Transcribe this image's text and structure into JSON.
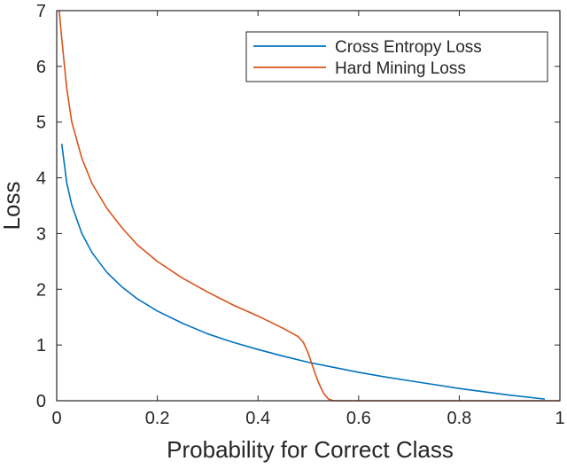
{
  "chart_data": {
    "type": "line",
    "title": "",
    "xlabel": "Probability for Correct Class",
    "ylabel": "Loss",
    "xlim": [
      0,
      1
    ],
    "ylim": [
      0,
      7
    ],
    "grid": false,
    "legend_position": "top-right",
    "x_ticks": [
      "0",
      "0.2",
      "0.4",
      "0.6",
      "0.8",
      "1"
    ],
    "y_ticks": [
      "0",
      "1",
      "2",
      "3",
      "4",
      "5",
      "6",
      "7"
    ],
    "series": [
      {
        "name": "Cross Entropy Loss",
        "color": "#0072bd",
        "x": [
          0.01,
          0.02,
          0.03,
          0.05,
          0.07,
          0.1,
          0.13,
          0.16,
          0.2,
          0.25,
          0.3,
          0.35,
          0.4,
          0.45,
          0.5,
          0.55,
          0.6,
          0.65,
          0.7,
          0.75,
          0.8,
          0.85,
          0.9,
          0.95,
          0.97
        ],
        "y": [
          4.61,
          3.91,
          3.51,
          3.0,
          2.66,
          2.3,
          2.04,
          1.83,
          1.61,
          1.39,
          1.2,
          1.05,
          0.92,
          0.8,
          0.69,
          0.6,
          0.51,
          0.43,
          0.36,
          0.29,
          0.22,
          0.16,
          0.1,
          0.05,
          0.03
        ]
      },
      {
        "name": "Hard Mining Loss",
        "color": "#d95319",
        "x": [
          0.005,
          0.01,
          0.02,
          0.03,
          0.05,
          0.07,
          0.1,
          0.13,
          0.16,
          0.2,
          0.25,
          0.3,
          0.35,
          0.4,
          0.45,
          0.47,
          0.48,
          0.49,
          0.5,
          0.51,
          0.52,
          0.53,
          0.54,
          0.55,
          0.6,
          0.7,
          0.8,
          0.9,
          1.0
        ],
        "y": [
          7.0,
          6.5,
          5.6,
          5.0,
          4.35,
          3.9,
          3.45,
          3.1,
          2.8,
          2.5,
          2.2,
          1.95,
          1.72,
          1.52,
          1.3,
          1.2,
          1.15,
          1.05,
          0.85,
          0.58,
          0.33,
          0.14,
          0.03,
          0.0,
          0.0,
          0.0,
          0.0,
          0.0,
          0.0
        ]
      }
    ]
  }
}
